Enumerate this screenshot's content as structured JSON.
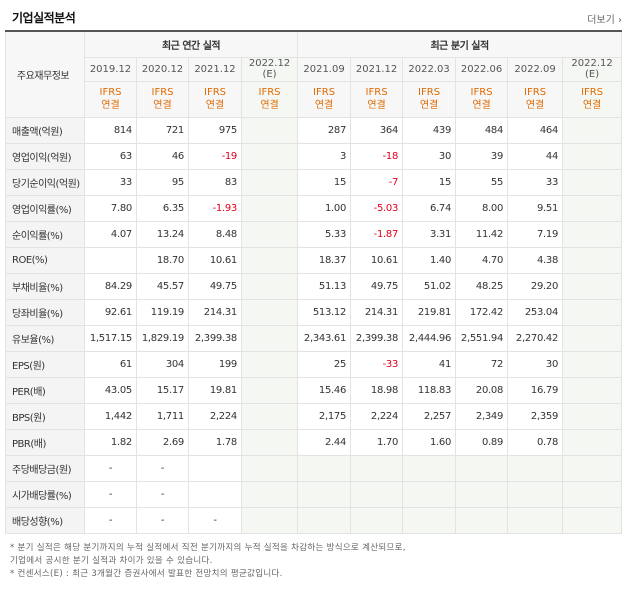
{
  "header": {
    "title": "기업실적분석",
    "more_label": "더보기 ›"
  },
  "table": {
    "corner_label": "주요재무정보",
    "annual_group": "최근 연간 실적",
    "quarterly_group": "최근 분기 실적",
    "annual_periods": [
      "2019.12",
      "2020.12",
      "2021.12",
      "2022.12\n(E)"
    ],
    "quarterly_periods": [
      "2021.09",
      "2021.12",
      "2022.03",
      "2022.06",
      "2022.09",
      "2022.12 (E)"
    ],
    "ifrs_label": [
      "IFRS",
      "연결"
    ],
    "rows": [
      {
        "label": "매출액(억원)",
        "values": [
          "814",
          "721",
          "975",
          "",
          "287",
          "364",
          "439",
          "484",
          "464",
          ""
        ]
      },
      {
        "label": "영업이익(억원)",
        "values": [
          "63",
          "46",
          "-19",
          "",
          "3",
          "-18",
          "30",
          "39",
          "44",
          ""
        ]
      },
      {
        "label": "당기순이익(억원)",
        "values": [
          "33",
          "95",
          "83",
          "",
          "15",
          "-7",
          "15",
          "55",
          "33",
          ""
        ]
      },
      {
        "label": "영업이익률(%)",
        "values": [
          "7.80",
          "6.35",
          "-1.93",
          "",
          "1.00",
          "-5.03",
          "6.74",
          "8.00",
          "9.51",
          ""
        ]
      },
      {
        "label": "순이익률(%)",
        "values": [
          "4.07",
          "13.24",
          "8.48",
          "",
          "5.33",
          "-1.87",
          "3.31",
          "11.42",
          "7.19",
          ""
        ]
      },
      {
        "label": "ROE(%)",
        "values": [
          "",
          "18.70",
          "10.61",
          "",
          "18.37",
          "10.61",
          "1.40",
          "4.70",
          "4.38",
          ""
        ]
      },
      {
        "label": "부채비율(%)",
        "values": [
          "84.29",
          "45.57",
          "49.75",
          "",
          "51.13",
          "49.75",
          "51.02",
          "48.25",
          "29.20",
          ""
        ]
      },
      {
        "label": "당좌비율(%)",
        "values": [
          "92.61",
          "119.19",
          "214.31",
          "",
          "513.12",
          "214.31",
          "219.81",
          "172.42",
          "253.04",
          ""
        ]
      },
      {
        "label": "유보율(%)",
        "values": [
          "1,517.15",
          "1,829.19",
          "2,399.38",
          "",
          "2,343.61",
          "2,399.38",
          "2,444.96",
          "2,551.94",
          "2,270.42",
          ""
        ]
      },
      {
        "label": "EPS(원)",
        "values": [
          "61",
          "304",
          "199",
          "",
          "25",
          "-33",
          "41",
          "72",
          "30",
          ""
        ]
      },
      {
        "label": "PER(배)",
        "values": [
          "43.05",
          "15.17",
          "19.81",
          "",
          "15.46",
          "18.98",
          "118.83",
          "20.08",
          "16.79",
          ""
        ]
      },
      {
        "label": "BPS(원)",
        "values": [
          "1,442",
          "1,711",
          "2,224",
          "",
          "2,175",
          "2,224",
          "2,257",
          "2,349",
          "2,359",
          ""
        ]
      },
      {
        "label": "PBR(배)",
        "values": [
          "1.82",
          "2.69",
          "1.78",
          "",
          "2.44",
          "1.70",
          "1.60",
          "0.89",
          "0.78",
          ""
        ]
      },
      {
        "label": "주당배당금(원)",
        "values": [
          "-",
          "-",
          "",
          "",
          "",
          "",
          "",
          "",
          "",
          ""
        ]
      },
      {
        "label": "시가배당률(%)",
        "values": [
          "-",
          "-",
          "",
          "",
          "",
          "",
          "",
          "",
          "",
          ""
        ]
      },
      {
        "label": "배당성향(%)",
        "values": [
          "-",
          "-",
          "-",
          "",
          "",
          "",
          "",
          "",
          "",
          ""
        ]
      }
    ]
  },
  "footnotes": [
    "* 분기 실적은 해당 분기까지의 누적 실적에서 직전 분기까지의 누적 실적을 차감하는 방식으로 계산되므로,",
    "  기업에서 공시한 분기 실적과 차이가 있을 수 있습니다.",
    "* 컨센서스(E) : 최근 3개월간 증권사에서 발표한 전망치의 평균값입니다."
  ]
}
